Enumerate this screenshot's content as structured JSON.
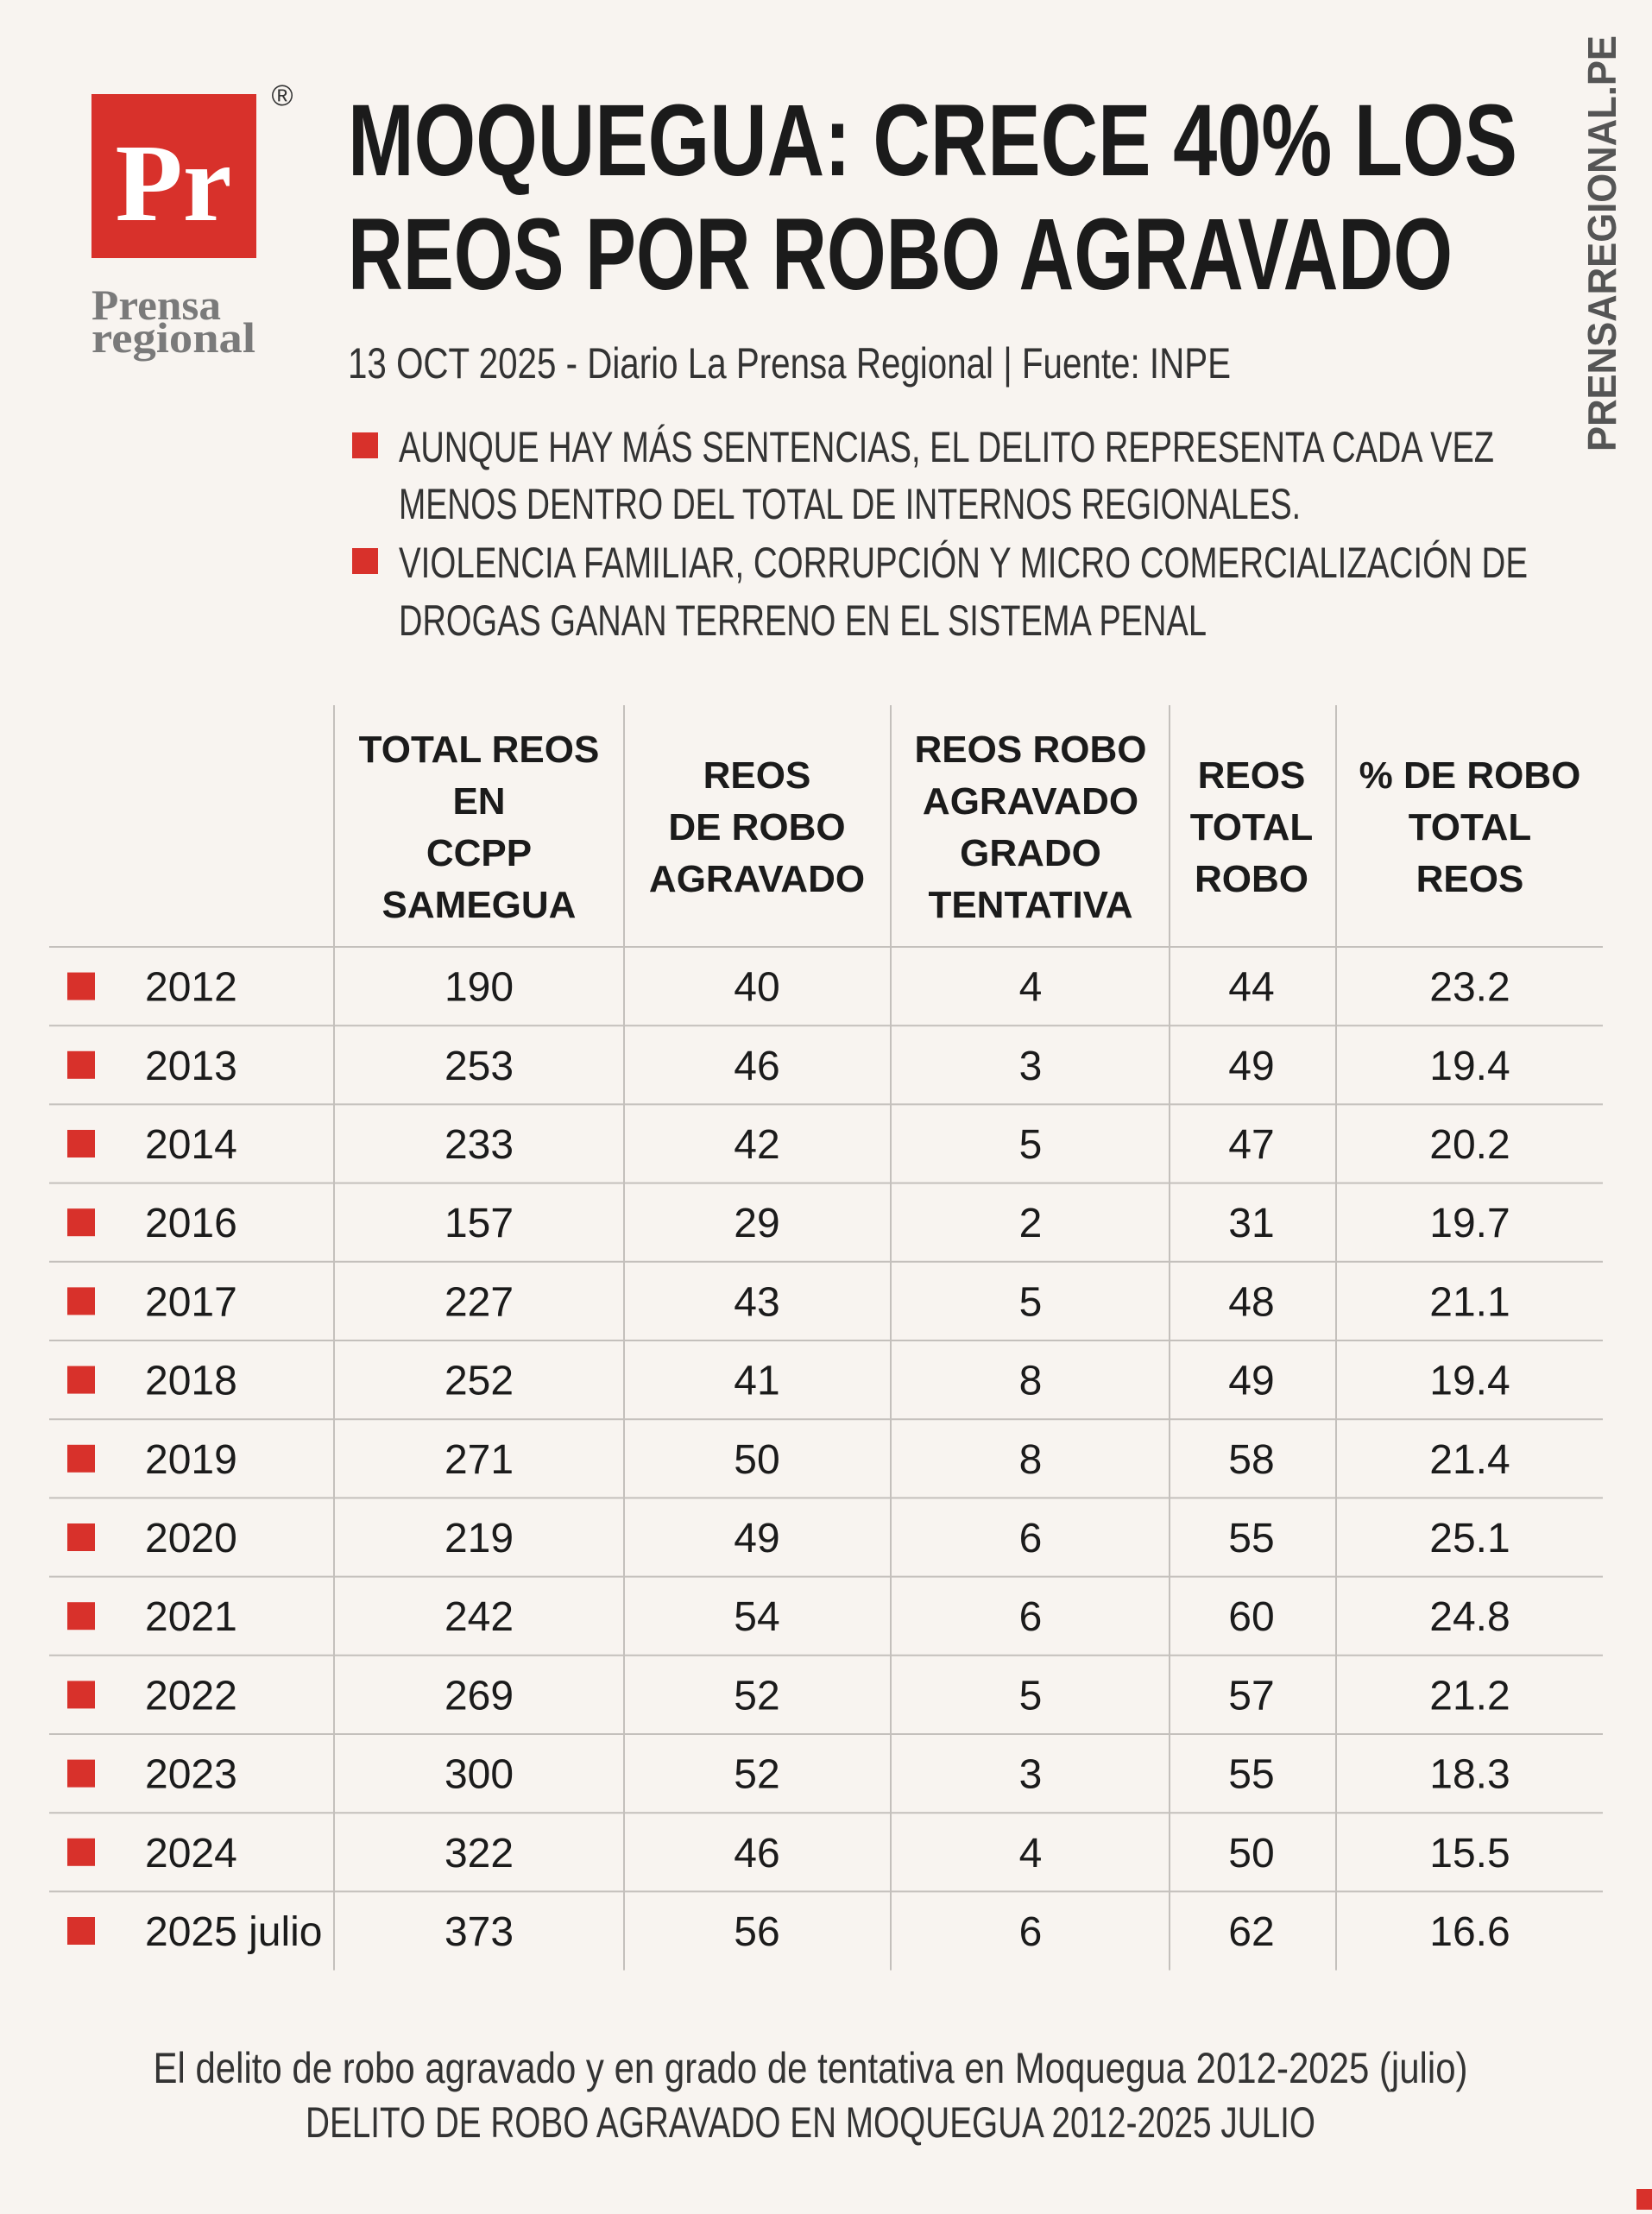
{
  "logo": {
    "mark": "Pr",
    "registered": "®",
    "name": [
      "Prensa",
      "regional"
    ]
  },
  "side_text": "PRENSAREGIONAL.PE",
  "header": {
    "title": [
      "MOQUEGUA: CRECE 40% LOS",
      "REOS POR ROBO AGRAVADO"
    ],
    "subtitle": "13 OCT 2025 - Diario La Prensa Regional | Fuente: INPE",
    "bullets": [
      [
        "AUNQUE HAY MÁS SENTENCIAS, EL DELITO REPRESENTA CADA VEZ",
        "MENOS DENTRO DEL TOTAL DE INTERNOS REGIONALES."
      ],
      [
        "VIOLENCIA FAMILIAR, CORRUPCIÓN Y MICRO COMERCIALIZACIÓN DE",
        "DROGAS GANAN TERRENO EN EL SISTEMA PENAL"
      ]
    ]
  },
  "table": {
    "columns": [
      [
        "TOTAL REOS",
        "EN",
        "CCPP",
        "SAMEGUA"
      ],
      [
        "REOS",
        "DE ROBO",
        "AGRAVADO"
      ],
      [
        "REOS ROBO",
        "AGRAVADO",
        "GRADO",
        "TENTATIVA"
      ],
      [
        "REOS",
        "TOTAL",
        "ROBO"
      ],
      [
        "% DE ROBO",
        "TOTAL",
        "REOS"
      ]
    ],
    "rows": [
      [
        "2012",
        190,
        40,
        4,
        44,
        23.2
      ],
      [
        "2013",
        253,
        46,
        3,
        49,
        19.4
      ],
      [
        "2014",
        233,
        42,
        5,
        47,
        20.2
      ],
      [
        "2016",
        157,
        29,
        2,
        31,
        19.7
      ],
      [
        "2017",
        227,
        43,
        5,
        48,
        21.1
      ],
      [
        "2018",
        252,
        41,
        8,
        49,
        19.4
      ],
      [
        "2019",
        271,
        50,
        8,
        58,
        21.4
      ],
      [
        "2020",
        219,
        49,
        6,
        55,
        25.1
      ],
      [
        "2021",
        242,
        54,
        6,
        60,
        24.8
      ],
      [
        "2022",
        269,
        52,
        5,
        57,
        21.2
      ],
      [
        "2023",
        300,
        52,
        3,
        55,
        18.3
      ],
      [
        "2024",
        322,
        46,
        4,
        50,
        15.5
      ],
      [
        "2025 julio",
        373,
        56,
        6,
        62,
        16.6
      ]
    ]
  },
  "footer": [
    "El delito de robo agravado y en grado de tentativa en Moquegua 2012-2025 (julio)",
    "DELITO DE ROBO AGRAVADO EN MOQUEGUA 2012-2025 JULIO"
  ]
}
